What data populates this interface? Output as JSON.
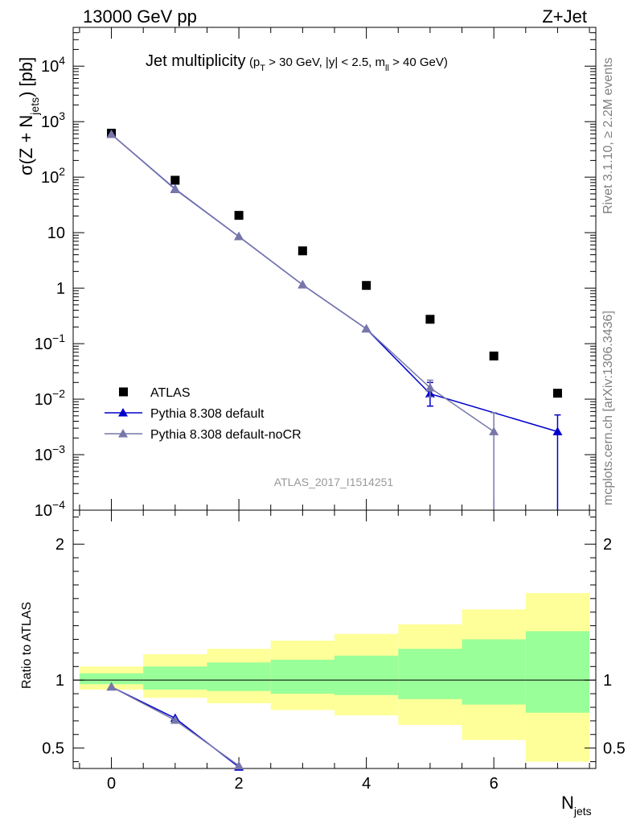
{
  "header": {
    "left": "13000 GeV pp",
    "right": "Z+Jet"
  },
  "side": {
    "rivet": "Rivet 3.1.10, ≥ 2.2M events",
    "mcplots": "mcplots.cern.ch [arXiv:1306.3436]"
  },
  "chart_data": {
    "type": "scatter",
    "title": {
      "main": "Jet multiplicity",
      "cond_pt": "(p",
      "cond_pt_sub": "T",
      "cond_rest1": " > 30 GeV, |y| < 2.5, m",
      "cond_m_sub": "ll",
      "cond_rest2": " > 40 GeV)"
    },
    "analysis_id": "ATLAS_2017_I1514251",
    "xlabel_main": "N",
    "xlabel_sub": "jets",
    "ylabel_main": "σ(Z + N",
    "ylabel_sub": "jets",
    "ylabel_end": ") [pb]",
    "ratio_ylabel": "Ratio to ATLAS",
    "xlim": [
      -0.6,
      7.6
    ],
    "ylim_log": [
      0.0001,
      50000
    ],
    "ratio_ylim": [
      0.35,
      2.25
    ],
    "x_ticks": [
      0,
      2,
      4,
      6
    ],
    "y_ticks": [
      {
        "v": 10000,
        "base": "10",
        "exp": "4"
      },
      {
        "v": 1000,
        "base": "10",
        "exp": "3"
      },
      {
        "v": 100,
        "base": "10",
        "exp": "2"
      },
      {
        "v": 10,
        "base": "10",
        "exp": ""
      },
      {
        "v": 1,
        "base": "1",
        "exp": ""
      },
      {
        "v": 0.1,
        "base": "10",
        "exp": "−1"
      },
      {
        "v": 0.01,
        "base": "10",
        "exp": "−2"
      },
      {
        "v": 0.001,
        "base": "10",
        "exp": "−3"
      },
      {
        "v": 0.0001,
        "base": "10",
        "exp": "−4"
      }
    ],
    "ratio_ticks": [
      {
        "v": 0.5,
        "label": "0.5"
      },
      {
        "v": 1,
        "label": "1"
      },
      {
        "v": 2,
        "label": "2"
      }
    ],
    "legend_position": "bottom-left",
    "series": [
      {
        "name": "ATLAS",
        "color": "#000000",
        "marker": "square",
        "x": [
          0,
          1,
          2,
          3,
          4,
          5,
          6,
          7
        ],
        "y": [
          620,
          88,
          20.5,
          4.7,
          1.12,
          0.275,
          0.06,
          0.0128
        ]
      },
      {
        "name": "Pythia 8.308 default",
        "color": "#0000cc",
        "marker": "triangle",
        "x": [
          0,
          1,
          2,
          3,
          4,
          5,
          6,
          7
        ],
        "y": [
          590,
          61,
          8.5,
          1.15,
          0.185,
          0.0125,
          null,
          0.0026
        ],
        "err_low": [
          null,
          null,
          null,
          null,
          null,
          0.0075,
          null,
          1e-05
        ],
        "err_high": [
          null,
          null,
          null,
          null,
          null,
          0.02,
          null,
          0.0052
        ],
        "ratio": [
          0.95,
          0.72,
          0.36
        ]
      },
      {
        "name": "Pythia 8.308 default-noCR",
        "color": "#7777aa",
        "marker": "triangle",
        "x": [
          0,
          1,
          2,
          3,
          4,
          5,
          6
        ],
        "y": [
          590,
          60,
          8.5,
          1.15,
          0.185,
          0.016,
          0.0026
        ],
        "err_low": [
          null,
          null,
          null,
          null,
          null,
          0.011,
          1e-05
        ],
        "err_high": [
          null,
          null,
          null,
          null,
          null,
          0.022,
          0.0057
        ],
        "ratio": [
          0.95,
          0.705,
          0.37
        ]
      }
    ],
    "ratio_bands": [
      {
        "x0": -0.5,
        "x1": 0.5,
        "y_in": [
          0.97,
          1.05
        ],
        "y_out": [
          0.93,
          1.1
        ]
      },
      {
        "x0": 0.5,
        "x1": 1.5,
        "y_in": [
          0.93,
          1.1
        ],
        "y_out": [
          0.87,
          1.19
        ]
      },
      {
        "x0": 1.5,
        "x1": 2.5,
        "y_in": [
          0.92,
          1.13
        ],
        "y_out": [
          0.83,
          1.23
        ]
      },
      {
        "x0": 2.5,
        "x1": 3.5,
        "y_in": [
          0.9,
          1.15
        ],
        "y_out": [
          0.78,
          1.29
        ]
      },
      {
        "x0": 3.5,
        "x1": 4.5,
        "y_in": [
          0.89,
          1.18
        ],
        "y_out": [
          0.74,
          1.34
        ]
      },
      {
        "x0": 4.5,
        "x1": 5.5,
        "y_in": [
          0.86,
          1.23
        ],
        "y_out": [
          0.67,
          1.41
        ]
      },
      {
        "x0": 5.5,
        "x1": 6.5,
        "y_in": [
          0.82,
          1.3
        ],
        "y_out": [
          0.56,
          1.52
        ]
      },
      {
        "x0": 6.5,
        "x1": 7.5,
        "y_in": [
          0.76,
          1.36
        ],
        "y_out": [
          0.4,
          1.64
        ]
      }
    ],
    "band_colors": {
      "inner": "#99ff99",
      "outer": "#ffff99"
    }
  }
}
